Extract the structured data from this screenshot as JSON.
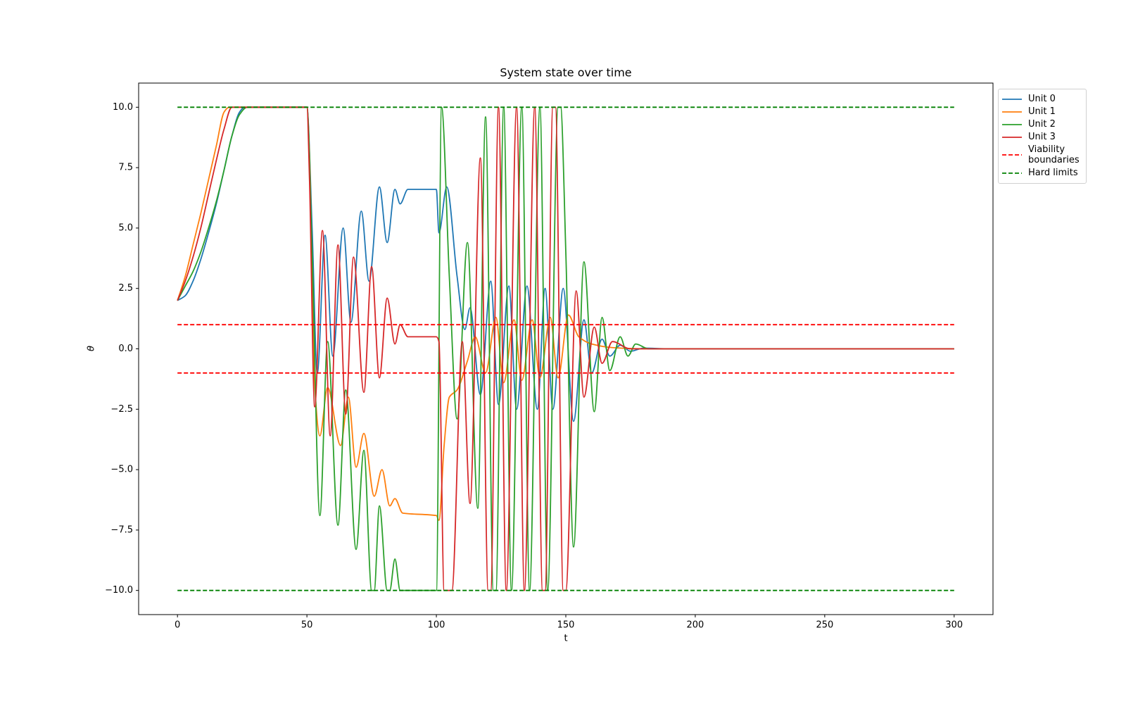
{
  "chart_data": {
    "type": "line",
    "title": "System state over time",
    "x_label": "t",
    "y_label": "θ",
    "xlim": [
      -15,
      315
    ],
    "ylim": [
      -11,
      11
    ],
    "xticks": [
      0,
      50,
      100,
      150,
      200,
      250,
      300
    ],
    "yticks": [
      {
        "value": -10,
        "label": "−10.0"
      },
      {
        "value": -7.5,
        "label": "−7.5"
      },
      {
        "value": -5,
        "label": "−5.0"
      },
      {
        "value": -2.5,
        "label": "−2.5"
      },
      {
        "value": 0,
        "label": "0.0"
      },
      {
        "value": 2.5,
        "label": "2.5"
      },
      {
        "value": 5,
        "label": "5.0"
      },
      {
        "value": 7.5,
        "label": "7.5"
      },
      {
        "value": 10,
        "label": "10.0"
      }
    ],
    "legend": "outside-upper-right",
    "series": [
      {
        "name": "Unit 0",
        "color": "#1f77b4",
        "x": [
          0,
          3,
          6,
          9,
          12,
          15,
          18,
          21,
          24,
          26,
          50,
          52,
          54,
          57,
          60,
          64,
          67,
          71,
          74,
          78,
          81,
          84,
          86,
          89,
          100,
          101,
          104,
          108,
          111,
          113,
          117,
          121,
          124,
          128,
          131,
          135,
          139,
          142,
          145,
          149,
          153,
          157,
          160,
          164,
          167,
          171,
          175,
          180,
          190,
          300
        ],
        "values": [
          2,
          2.2,
          2.8,
          3.7,
          4.8,
          6.0,
          7.4,
          8.8,
          9.8,
          10,
          10,
          5,
          -1.0,
          4.7,
          -0.3,
          5.0,
          1.1,
          5.7,
          2.8,
          6.7,
          4.4,
          6.6,
          6.0,
          6.6,
          6.6,
          4.8,
          6.7,
          3.0,
          0.8,
          1.7,
          -1.9,
          2.8,
          -2.3,
          2.6,
          -2.5,
          2.6,
          -2.5,
          2.5,
          -2.5,
          2.5,
          -3.0,
          1.2,
          -1.0,
          0.4,
          -0.3,
          0.15,
          -0.1,
          0.03,
          0,
          0
        ]
      },
      {
        "name": "Unit 1",
        "color": "#ff7f0e",
        "x": [
          0,
          3,
          6,
          9,
          12,
          15,
          18,
          20,
          50,
          51,
          53,
          55,
          58,
          63,
          66,
          69,
          72,
          76,
          79,
          82,
          84,
          87,
          100,
          101,
          103,
          105,
          108,
          112,
          115,
          119,
          123,
          126,
          130,
          133,
          137,
          140,
          144,
          147,
          151,
          155,
          160,
          168,
          180,
          300
        ],
        "values": [
          2,
          3.0,
          4.3,
          5.6,
          7.0,
          8.4,
          9.8,
          10,
          10,
          8,
          -1.5,
          -3.6,
          -1.6,
          -4.0,
          -2.0,
          -4.9,
          -3.5,
          -6.1,
          -5.0,
          -6.5,
          -6.2,
          -6.8,
          -6.9,
          -7.1,
          -4.0,
          -2.0,
          -1.7,
          -0.5,
          0.5,
          -1.0,
          1.3,
          -1.4,
          1.2,
          -1.3,
          1.2,
          -1.2,
          1.3,
          -1.2,
          1.4,
          0.5,
          0.2,
          0.05,
          0,
          0
        ]
      },
      {
        "name": "Unit 2",
        "color": "#2ca02c",
        "x": [
          0,
          3,
          6,
          9,
          12,
          15,
          18,
          21,
          24,
          27,
          50,
          52,
          55,
          58,
          62,
          65,
          69,
          72,
          75,
          76,
          78,
          81,
          82,
          84,
          86,
          100,
          102,
          105,
          108,
          112,
          116,
          119,
          122,
          123,
          126,
          129,
          133,
          136,
          140,
          143,
          147,
          148,
          150,
          153,
          157,
          161,
          164,
          167,
          171,
          174,
          177,
          182,
          300
        ],
        "values": [
          2,
          2.6,
          3.2,
          4.0,
          5.0,
          6.1,
          7.4,
          8.8,
          9.7,
          10,
          10,
          4,
          -6.9,
          0.3,
          -7.3,
          -1.7,
          -8.3,
          -4.2,
          -10,
          -10,
          -6.5,
          -10,
          -10,
          -8.7,
          -10,
          -10,
          10,
          3,
          -2.9,
          4.4,
          -6.6,
          9.6,
          -10,
          -10,
          10,
          -10,
          10,
          -10,
          10,
          -10,
          10,
          10,
          4,
          -8.2,
          3.6,
          -2.6,
          1.3,
          -0.9,
          0.5,
          -0.3,
          0.2,
          0,
          0
        ]
      },
      {
        "name": "Unit 3",
        "color": "#d62728",
        "x": [
          0,
          3,
          6,
          9,
          12,
          15,
          18,
          21,
          50,
          51,
          53,
          56,
          59,
          62,
          65,
          68,
          72,
          75,
          78,
          81,
          84,
          86,
          89,
          100,
          101,
          103,
          106,
          110,
          113,
          117,
          120,
          121,
          124,
          127,
          131,
          134,
          138,
          141,
          142,
          145,
          146,
          149,
          150,
          154,
          157,
          161,
          164,
          168,
          175,
          300
        ],
        "values": [
          2,
          2.8,
          3.8,
          5.0,
          6.4,
          7.8,
          9.1,
          10,
          10,
          7,
          -2.4,
          4.9,
          -3.6,
          4.3,
          -2.7,
          3.8,
          -1.8,
          3.4,
          -1.2,
          2.1,
          0.2,
          1.0,
          0.5,
          0.5,
          0.3,
          -10,
          -10,
          0.3,
          -6.4,
          7.9,
          -10,
          -10,
          10,
          -10,
          10,
          -10,
          10,
          -10,
          -10,
          10,
          10,
          -10,
          -10,
          2.4,
          -2.0,
          0.9,
          -0.6,
          0.3,
          0,
          0
        ]
      }
    ],
    "reference_lines": [
      {
        "name": "Viability\nboundaries",
        "color": "#ff0000",
        "style": "dashed",
        "values": [
          1,
          -1
        ],
        "xrange": [
          0,
          300
        ]
      },
      {
        "name": "Hard limits",
        "color": "#008000",
        "style": "dashed",
        "values": [
          10,
          -10
        ],
        "xrange": [
          0,
          300
        ]
      }
    ]
  }
}
